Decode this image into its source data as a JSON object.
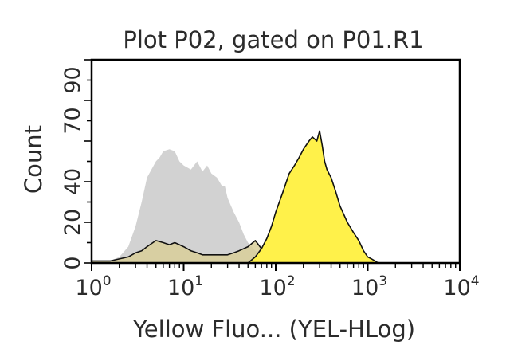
{
  "chart_data": {
    "type": "area",
    "title": "Plot P02, gated on P01.R1",
    "xlabel": "Yellow Fluo... (YEL-HLog)",
    "ylabel": "Count",
    "xscale": "log",
    "xlim": [
      1,
      10000
    ],
    "ylim": [
      0,
      100
    ],
    "x_ticks": [
      {
        "base": "10",
        "exp": "0",
        "value": 1
      },
      {
        "base": "10",
        "exp": "1",
        "value": 10
      },
      {
        "base": "10",
        "exp": "2",
        "value": 100
      },
      {
        "base": "10",
        "exp": "3",
        "value": 1000
      },
      {
        "base": "10",
        "exp": "4",
        "value": 10000
      }
    ],
    "y_ticks": [
      "0",
      "20",
      "40",
      "70",
      "90"
    ],
    "y_tick_values": [
      0,
      20,
      40,
      70,
      90
    ],
    "grid": false,
    "series": [
      {
        "color": "#d2d2d2",
        "outline": false,
        "x": [
          1,
          1.3,
          1.6,
          2,
          2.5,
          3,
          3.5,
          4,
          5,
          5.5,
          6,
          7,
          8,
          9,
          10,
          12,
          14,
          16,
          18,
          20,
          23,
          26,
          28,
          30,
          35,
          40,
          45,
          50,
          55,
          60,
          65,
          70,
          80,
          90,
          100
        ],
        "y": [
          1,
          1,
          1,
          3,
          8,
          18,
          30,
          42,
          50,
          52,
          55,
          56,
          55,
          50,
          48,
          46,
          50,
          45,
          48,
          44,
          42,
          38,
          38,
          32,
          25,
          20,
          14,
          10,
          8,
          6,
          5,
          3,
          2,
          1,
          0
        ]
      },
      {
        "color": "#d9cf9a",
        "outline": true,
        "x": [
          1,
          1.3,
          1.6,
          2,
          2.5,
          3,
          3.5,
          4,
          5,
          6,
          7,
          8,
          9,
          10,
          12,
          14,
          16,
          20,
          25,
          30,
          35,
          40,
          50,
          60,
          65,
          70,
          80,
          90,
          100
        ],
        "y": [
          1,
          1,
          1,
          2,
          3,
          5,
          6,
          8,
          11,
          10,
          9,
          10,
          9,
          8,
          6,
          5,
          4,
          4,
          4,
          4,
          5,
          6,
          8,
          11,
          9,
          7,
          5,
          2,
          0
        ]
      },
      {
        "color": "#fff14a",
        "outline": true,
        "x": [
          50,
          60,
          70,
          80,
          90,
          100,
          120,
          140,
          160,
          180,
          200,
          230,
          250,
          280,
          300,
          320,
          340,
          360,
          400,
          450,
          500,
          600,
          700,
          800,
          900,
          1000,
          1100,
          1200,
          1300
        ],
        "y": [
          0,
          3,
          7,
          12,
          18,
          25,
          35,
          44,
          48,
          52,
          56,
          60,
          62,
          60,
          65,
          58,
          50,
          46,
          42,
          35,
          28,
          20,
          15,
          11,
          6,
          3,
          2,
          1,
          0
        ]
      }
    ]
  }
}
